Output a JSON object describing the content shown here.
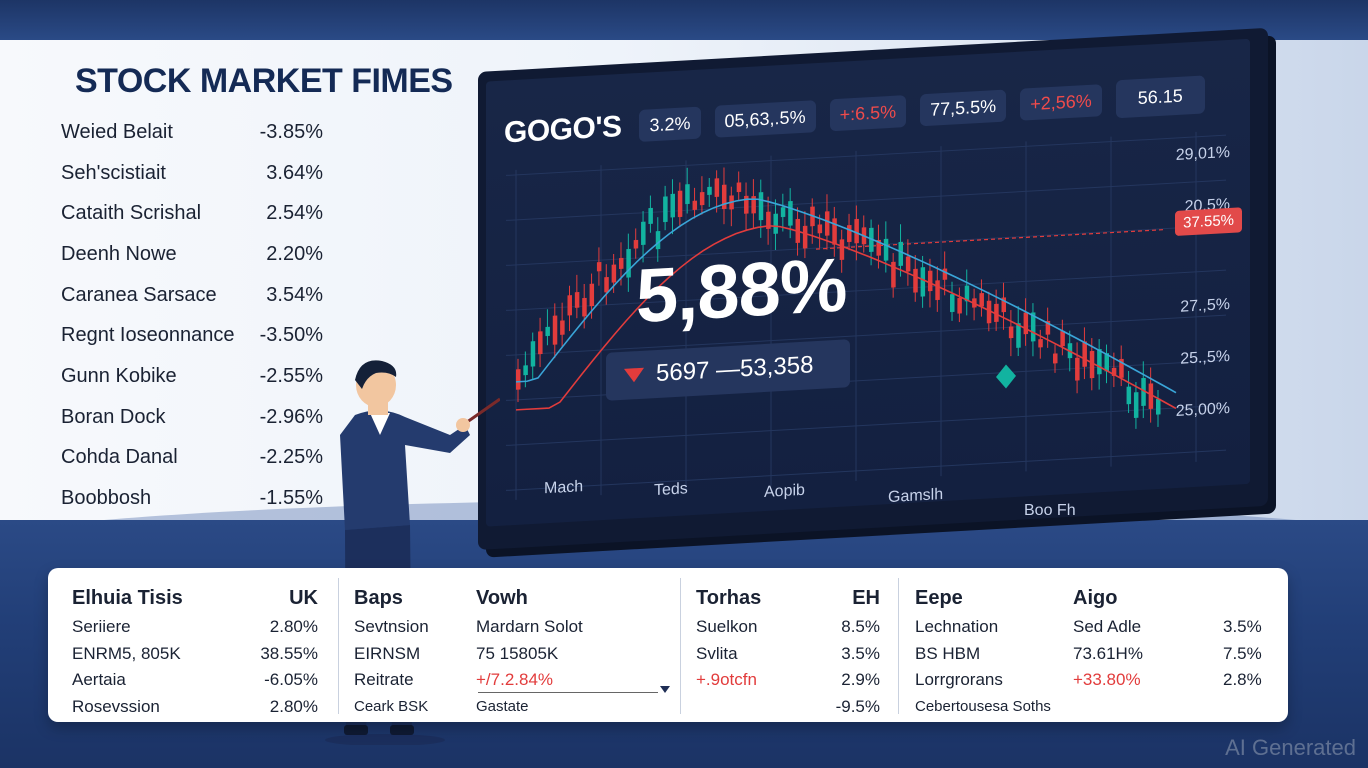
{
  "title": "STOCK MARKET FIMES",
  "left_list": [
    {
      "name": "Weied Belait",
      "pct": "-3.85%"
    },
    {
      "name": "Seh'scistiait",
      "pct": "3.64%"
    },
    {
      "name": "Cataith Scrishal",
      "pct": "2.54%"
    },
    {
      "name": "Deenh Nowe",
      "pct": "2.20%"
    },
    {
      "name": "Caranea Sarsace",
      "pct": "3.54%"
    },
    {
      "name": "Regnt Ioseonnance",
      "pct": "-3.50%"
    },
    {
      "name": "Gunn Kobike",
      "pct": "-2.55%"
    },
    {
      "name": "Boran Dock",
      "pct": "-2.96%"
    },
    {
      "name": "Cohda Danal",
      "pct": "-2.25%"
    },
    {
      "name": "Boobbosh",
      "pct": "-1.55%"
    }
  ],
  "monitor": {
    "brand": "GOGO'S",
    "chips": [
      {
        "text": "3.2%",
        "color": "#ffffff"
      },
      {
        "text": "05,63,.5%",
        "color": "#ffffff"
      },
      {
        "text": "+:6.5%",
        "color": "#f04b4b"
      },
      {
        "text": "77,5.5%",
        "color": "#ffffff"
      },
      {
        "text": "+2,56%",
        "color": "#f04b4b"
      },
      {
        "text": "56.15",
        "color": "#ffffff"
      }
    ],
    "big_value": "5,88%",
    "delta_text": "5697 —53,358",
    "y_labels": [
      "29,01%",
      "20.5%",
      "27.,5%",
      "25.,5%",
      "25,00%"
    ],
    "y_tag": "37.55%",
    "x_labels": [
      "Mach",
      "Teds",
      "Aopib",
      "Gamslh",
      "Boo Fh"
    ],
    "colors": {
      "up": "#12b3a0",
      "down": "#e23c3c",
      "line_red": "#e23c3c",
      "line_blue": "#3aa5d8"
    }
  },
  "panel": {
    "col1": {
      "head_left": "Elhuia Tisis",
      "head_right": "UK",
      "rows": [
        {
          "left": "Seriiere",
          "right": "2.80%"
        },
        {
          "left": "ENRM5, 805K",
          "right": "38.55%"
        },
        {
          "left": "Aertaia",
          "right": "-6.05%"
        },
        {
          "left": "Rosevssion",
          "right": "2.80%"
        }
      ]
    },
    "col2": {
      "head_left": "Baps",
      "head_right": "Vowh",
      "rows": [
        {
          "left": "Sevtnsion",
          "right": "Mardarn Solot",
          "right_red": false
        },
        {
          "left": "EIRNSM",
          "right": "75 15805K",
          "right_red": false
        },
        {
          "left": "Reitrate",
          "right": "+/7.2.84%",
          "right_red": true
        },
        {
          "left": "Ceark BSK",
          "right": "Gastate",
          "right_red": false
        }
      ]
    },
    "col3": {
      "head_left": "Torhas",
      "head_right": "EH",
      "rows": [
        {
          "left": "Suelkon",
          "right": "8.5%",
          "left_red": false
        },
        {
          "left": "Svlita",
          "right": "3.5%",
          "left_red": false
        },
        {
          "left": "+.9otcfn",
          "right": "2.9%",
          "left_red": true
        },
        {
          "left": "",
          "right": "-9.5%",
          "left_red": false
        }
      ]
    },
    "col4": {
      "head_left": "Eepe",
      "head_mid": "Aigo",
      "rows": [
        {
          "left": "Lechnation",
          "mid": "Sed Adle",
          "right": "3.5%",
          "mid_red": false
        },
        {
          "left": "BS HBM",
          "mid": "73.61H%",
          "right": "7.5%",
          "mid_red": false
        },
        {
          "left": "Lorrgrorans",
          "mid": "+33.80%",
          "right": "2.8%",
          "mid_red": true
        },
        {
          "left": "Cebertousesa Soths",
          "mid": "",
          "right": "",
          "mid_red": false
        }
      ]
    }
  },
  "watermark": "AI Generated"
}
